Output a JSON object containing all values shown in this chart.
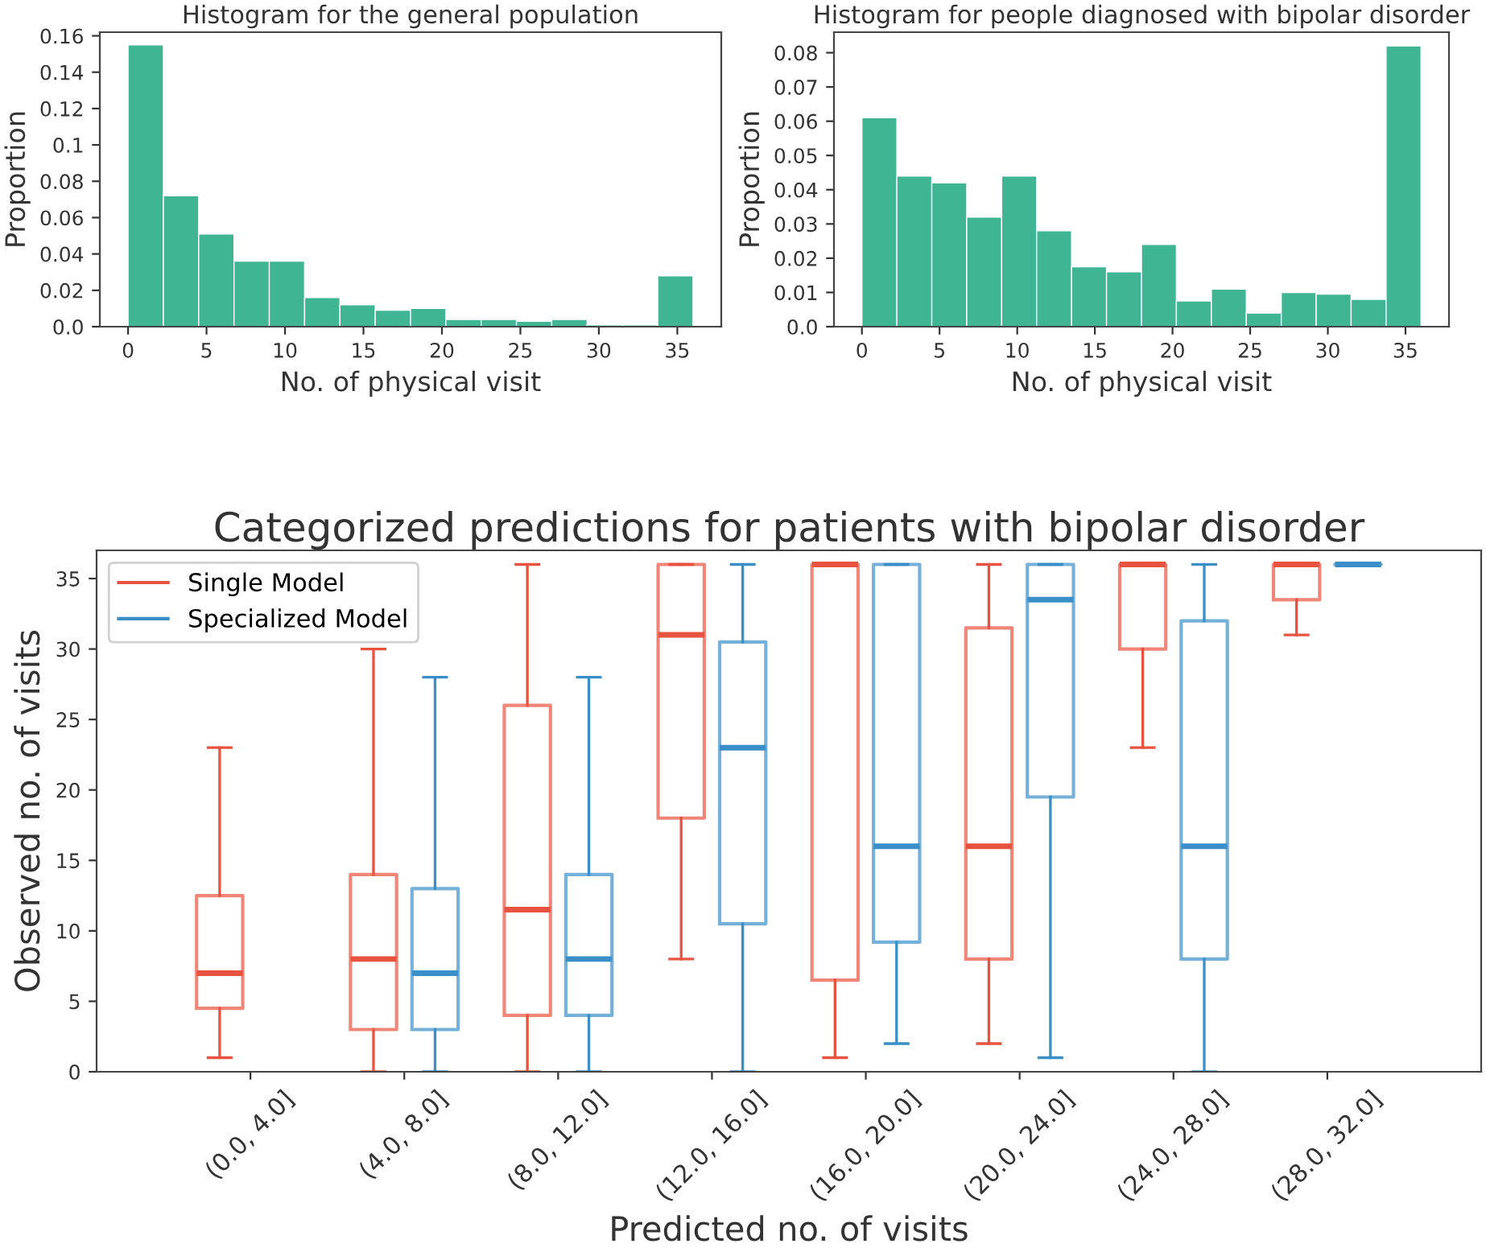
{
  "chart_data": [
    {
      "type": "histogram",
      "title": "Histogram for the general population",
      "xlabel": "No. of physical visit",
      "ylabel": "Proportion",
      "color": "#3fb594",
      "bins": [
        0,
        2.25,
        4.5,
        6.75,
        9,
        11.25,
        13.5,
        15.75,
        18,
        20.25,
        22.5,
        24.75,
        27,
        29.25,
        31.5,
        33.75,
        36
      ],
      "values": [
        0.155,
        0.072,
        0.051,
        0.036,
        0.036,
        0.016,
        0.012,
        0.009,
        0.01,
        0.004,
        0.004,
        0.003,
        0.004,
        0.001,
        0.001,
        0.028
      ],
      "xlim": [
        -1.8,
        37.8
      ],
      "xticks": [
        0,
        5,
        10,
        15,
        20,
        25,
        30,
        35
      ],
      "ylim": [
        0,
        0.162
      ],
      "yticks": [
        {
          "value": 0,
          "label": "0.0"
        },
        0.02,
        0.04,
        0.06,
        0.08,
        0.1,
        0.12,
        0.14,
        0.16
      ],
      "grid": false
    },
    {
      "type": "histogram",
      "title": "Histogram for people diagnosed with bipolar disorder",
      "xlabel": "No. of physical visit",
      "ylabel": "Proportion",
      "color": "#3fb594",
      "bins": [
        0,
        2.25,
        4.5,
        6.75,
        9,
        11.25,
        13.5,
        15.75,
        18,
        20.25,
        22.5,
        24.75,
        27,
        29.25,
        31.5,
        33.75,
        36
      ],
      "values": [
        0.061,
        0.044,
        0.042,
        0.032,
        0.044,
        0.028,
        0.0175,
        0.016,
        0.024,
        0.0075,
        0.011,
        0.004,
        0.01,
        0.0095,
        0.008,
        0.082
      ],
      "xlim": [
        -1.8,
        37.8
      ],
      "xticks": [
        0,
        5,
        10,
        15,
        20,
        25,
        30,
        35
      ],
      "ylim": [
        0,
        0.086
      ],
      "yticks": [
        {
          "value": 0,
          "label": "0.0"
        },
        0.01,
        0.02,
        0.03,
        0.04,
        0.05,
        0.06,
        0.07,
        0.08
      ],
      "grid": false
    },
    {
      "type": "box",
      "title": "Categorized predictions for patients with bipolar disorder",
      "xlabel": "Predicted no. of visits",
      "ylabel": "Observed no. of visits",
      "categories": [
        "(0.0, 4.0]",
        "(4.0, 8.0]",
        "(8.0, 12.0]",
        "(12.0, 16.0]",
        "(16.0, 20.0]",
        "(20.0, 24.0]",
        "(24.0, 28.0]",
        "(28.0, 32.0]"
      ],
      "ylim": [
        0,
        37
      ],
      "yticks": [
        0,
        5,
        10,
        15,
        20,
        25,
        30,
        35
      ],
      "grid": false,
      "legend": "top left",
      "series": [
        {
          "name": "Single Model",
          "color": "#e8533f",
          "boxes": [
            {
              "low": 1,
              "q1": 4.5,
              "median": 7,
              "q3": 12.5,
              "high": 23
            },
            {
              "low": 0,
              "q1": 3,
              "median": 8,
              "q3": 14,
              "high": 30
            },
            {
              "low": 0,
              "q1": 4,
              "median": 11.5,
              "q3": 26,
              "high": 36
            },
            {
              "low": 8,
              "q1": 18,
              "median": 31,
              "q3": 36,
              "high": 36
            },
            {
              "low": 1,
              "q1": 6.5,
              "median": 36,
              "q3": 36,
              "high": 36
            },
            {
              "low": 2,
              "q1": 8,
              "median": 16,
              "q3": 31.5,
              "high": 36
            },
            {
              "low": 23,
              "q1": 30,
              "median": 36,
              "q3": 36,
              "high": 36
            },
            {
              "low": 31,
              "q1": 33.5,
              "median": 36,
              "q3": 36,
              "high": 36
            }
          ]
        },
        {
          "name": "Specialized Model",
          "color": "#3a8fc8",
          "boxes": [
            null,
            {
              "low": 0,
              "q1": 3,
              "median": 7,
              "q3": 13,
              "high": 28
            },
            {
              "low": 0,
              "q1": 4,
              "median": 8,
              "q3": 14,
              "high": 28
            },
            {
              "low": 0,
              "q1": 10.5,
              "median": 23,
              "q3": 30.5,
              "high": 36
            },
            {
              "low": 2,
              "q1": 9.2,
              "median": 16,
              "q3": 36,
              "high": 36
            },
            {
              "low": 1,
              "q1": 19.5,
              "median": 33.5,
              "q3": 36,
              "high": 36
            },
            {
              "low": 0,
              "q1": 8,
              "median": 16,
              "q3": 32,
              "high": 36
            },
            {
              "low": 36,
              "q1": 36,
              "median": 36,
              "q3": 36,
              "high": 36
            }
          ]
        }
      ]
    }
  ]
}
